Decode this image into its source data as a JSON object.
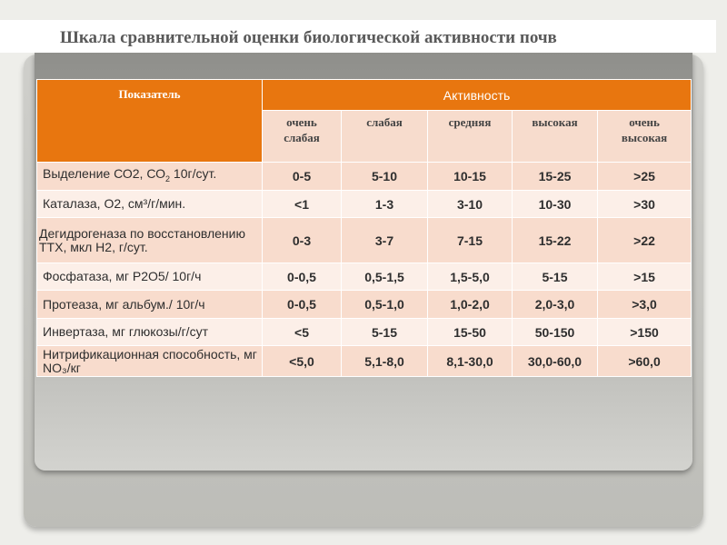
{
  "title": "Шкала сравнительной оценки биологической активности почв",
  "table": {
    "header_indicator": "Показатель",
    "header_activity": "Активность",
    "levels": [
      "очень слабая",
      "слабая",
      "средняя",
      "высокая",
      "очень высокая"
    ],
    "rows": [
      {
        "label": "Выделение СО2, СО",
        "label_sub": "2",
        "label_tail": " 10г/сут.",
        "values": [
          "0-5",
          "5-10",
          "10-15",
          "15-25",
          ">25"
        ]
      },
      {
        "label": "Каталаза, О2, см³/г/мин.",
        "values": [
          "<1",
          "1-3",
          "3-10",
          "10-30",
          ">30"
        ]
      },
      {
        "label": "Дегидрогеназа по восстановлению ТТХ, мкл Н2, г/сут.",
        "values": [
          "0-3",
          "3-7",
          "7-15",
          "15-22",
          ">22"
        ]
      },
      {
        "label": "Фосфатаза, мг Р2О5/ 10г/ч",
        "values": [
          "0-0,5",
          "0,5-1,5",
          "1,5-5,0",
          "5-15",
          ">15"
        ]
      },
      {
        "label": "Протеаза, мг альбум./ 10г/ч",
        "values": [
          "0-0,5",
          "0,5-1,0",
          "1,0-2,0",
          "2,0-3,0",
          ">3,0"
        ]
      },
      {
        "label": "Инвертаза, мг глюкозы/г/сут",
        "values": [
          "<5",
          "5-15",
          "15-50",
          "50-150",
          ">150"
        ]
      },
      {
        "label": "Нитрификационная способность, мг NO₃/кг",
        "values": [
          "<5,0",
          "5,1-8,0",
          "8,1-30,0",
          "30,0-60,0",
          ">60,0"
        ]
      }
    ]
  },
  "colors": {
    "header": "#e8760f",
    "row_dark": "#f8dccd",
    "row_light": "#fcefe8",
    "title": "#595959"
  }
}
